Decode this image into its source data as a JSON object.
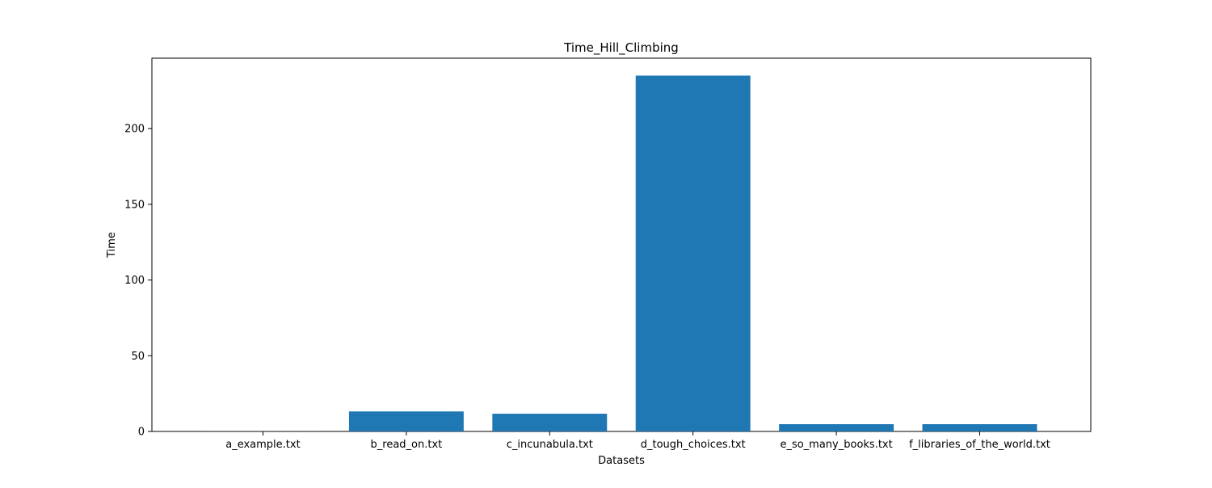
{
  "chart_data": {
    "type": "bar",
    "title": "Time_Hill_Climbing",
    "xlabel": "Datasets",
    "ylabel": "Time",
    "categories": [
      "a_example.txt",
      "b_read_on.txt",
      "c_incunabula.txt",
      "d_tough_choices.txt",
      "e_so_many_books.txt",
      "f_libraries_of_the_world.txt"
    ],
    "values": [
      0.05,
      13.2,
      11.7,
      235.0,
      4.8,
      4.8
    ],
    "ylim": [
      0,
      246.5
    ],
    "yticks": [
      0,
      50,
      100,
      150,
      200
    ],
    "grid": false,
    "legend": "none",
    "bar_color": "#1f77b4"
  }
}
